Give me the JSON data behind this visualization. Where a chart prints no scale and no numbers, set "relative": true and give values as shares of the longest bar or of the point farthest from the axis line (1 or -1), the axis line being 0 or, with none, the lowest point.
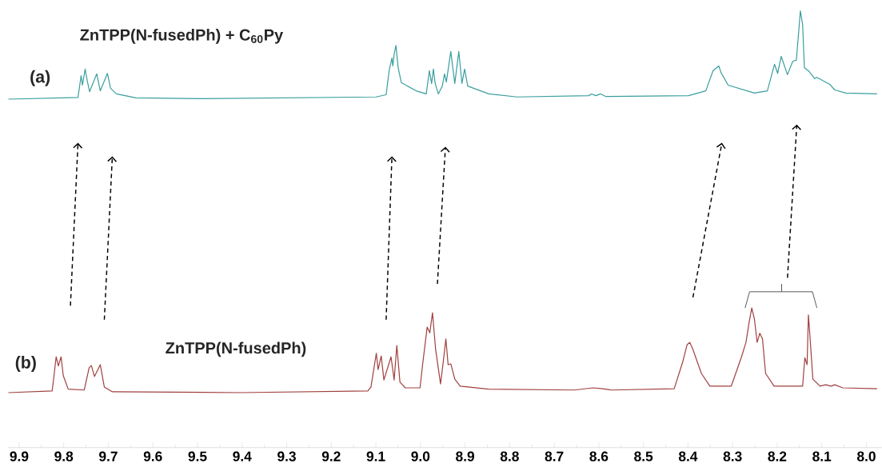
{
  "chart_data": {
    "type": "line",
    "relative": true,
    "xlim": [
      9.925,
      7.965
    ],
    "xticks": [
      9.9,
      9.8,
      9.7,
      9.6,
      9.5,
      9.4,
      9.3,
      9.2,
      9.1,
      {
        "value": 9,
        "label": "9.0"
      },
      8.9,
      8.8,
      8.7,
      8.6,
      8.5,
      8.4,
      8.3,
      8.2,
      8.1,
      {
        "value": 8,
        "label": "8.0"
      }
    ],
    "annotations": [
      "ZnTPP(N-fusedPh) + C$_{60}$Py",
      "ZnTPP(N-fusedPh)"
    ],
    "series": [
      {
        "name": "(a)",
        "color": "#3a9e9e",
        "x": [
          9.924,
          9.768,
          9.761,
          9.758,
          9.752,
          9.747,
          9.742,
          9.726,
          9.718,
          9.702,
          9.695,
          9.682,
          9.638,
          9.494,
          9.1,
          9.077,
          9.07,
          9.064,
          9.062,
          9.059,
          9.055,
          9.05,
          9.043,
          9.01,
          8.987,
          8.98,
          8.975,
          8.971,
          8.967,
          8.96,
          8.951,
          8.946,
          8.942,
          8.932,
          8.923,
          8.914,
          8.907,
          8.901,
          8.894,
          8.847,
          8.783,
          8.623,
          8.616,
          8.607,
          8.596,
          8.584,
          8.399,
          8.36,
          8.344,
          8.331,
          8.326,
          8.31,
          8.251,
          8.222,
          8.206,
          8.199,
          8.191,
          8.177,
          8.165,
          8.157,
          8.148,
          8.143,
          8.139,
          8.13,
          8.116,
          8.111,
          8.082,
          8.071,
          8.046,
          7.976
        ],
        "values": [
          0.798,
          0.802,
          0.852,
          0.83,
          0.867,
          0.839,
          0.815,
          0.856,
          0.817,
          0.857,
          0.823,
          0.81,
          0.801,
          0.799,
          0.803,
          0.808,
          0.865,
          0.892,
          0.874,
          0.901,
          0.921,
          0.87,
          0.836,
          0.817,
          0.81,
          0.863,
          0.834,
          0.867,
          0.834,
          0.81,
          0.828,
          0.856,
          0.837,
          0.907,
          0.834,
          0.907,
          0.834,
          0.867,
          0.828,
          0.81,
          0.803,
          0.806,
          0.81,
          0.806,
          0.81,
          0.804,
          0.806,
          0.817,
          0.863,
          0.874,
          0.859,
          0.83,
          0.812,
          0.817,
          0.878,
          0.857,
          0.896,
          0.854,
          0.885,
          0.887,
          1,
          0.969,
          0.87,
          0.863,
          0.845,
          0.848,
          0.832,
          0.819,
          0.812,
          0.81
        ]
      },
      {
        "name": "(b)",
        "color": "#a0403f",
        "x": [
          9.924,
          9.826,
          9.822,
          9.817,
          9.812,
          9.806,
          9.801,
          9.79,
          9.754,
          9.743,
          9.738,
          9.731,
          9.718,
          9.709,
          9.691,
          9.405,
          9.118,
          9.111,
          9.099,
          9.095,
          9.088,
          9.082,
          9.066,
          9.059,
          9.053,
          9.046,
          9.034,
          9.001,
          8.995,
          8.985,
          8.979,
          8.973,
          8.966,
          8.955,
          8.95,
          8.943,
          8.938,
          8.932,
          8.923,
          8.911,
          8.847,
          8.655,
          8.613,
          8.591,
          8.571,
          8.431,
          8.412,
          8.402,
          8.396,
          8.389,
          8.37,
          8.351,
          8.303,
          8.28,
          8.27,
          8.263,
          8.257,
          8.251,
          8.245,
          8.239,
          8.233,
          8.226,
          8.207,
          8.143,
          8.138,
          8.133,
          8.13,
          8.127,
          8.12,
          8.104,
          8.091,
          8.079,
          8.071,
          8.053,
          7.976
        ],
        "values": [
          0.126,
          0.13,
          0.163,
          0.208,
          0.187,
          0.208,
          0.165,
          0.134,
          0.132,
          0.183,
          0.188,
          0.163,
          0.19,
          0.139,
          0.128,
          0.126,
          0.13,
          0.139,
          0.216,
          0.179,
          0.21,
          0.155,
          0.208,
          0.155,
          0.234,
          0.15,
          0.137,
          0.137,
          0.192,
          0.276,
          0.263,
          0.309,
          0.225,
          0.146,
          0.187,
          0.249,
          0.19,
          0.192,
          0.157,
          0.141,
          0.134,
          0.132,
          0.137,
          0.135,
          0.132,
          0.135,
          0.196,
          0.236,
          0.241,
          0.225,
          0.17,
          0.141,
          0.141,
          0.208,
          0.241,
          0.287,
          0.32,
          0.294,
          0.241,
          0.262,
          0.249,
          0.17,
          0.141,
          0.141,
          0.206,
          0.19,
          0.304,
          0.262,
          0.157,
          0.141,
          0.144,
          0.141,
          0.144,
          0.137,
          0.135
        ]
      }
    ]
  }
}
